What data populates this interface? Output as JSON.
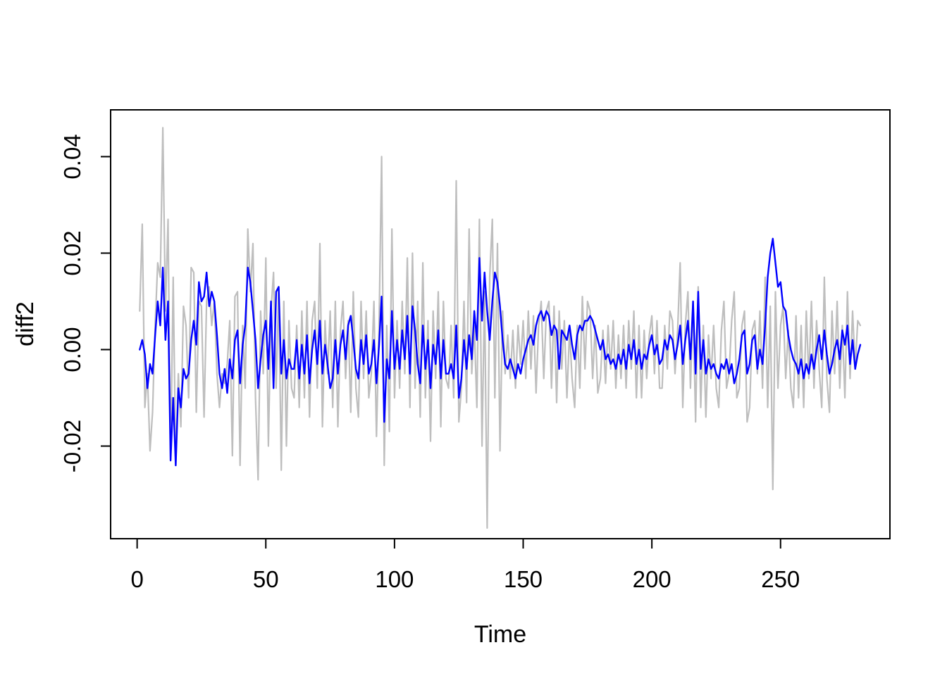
{
  "figure": {
    "kind": "r-base-time-series-plot",
    "title": "",
    "background": "#ffffff"
  },
  "colors": {
    "gray_series": "#bebebe",
    "blue_series": "#0000ff",
    "axis": "#000000",
    "background": "#ffffff"
  },
  "axes": {
    "x": {
      "label": "Time",
      "tick_labels": [
        "0",
        "50",
        "100",
        "150",
        "200",
        "250"
      ]
    },
    "y": {
      "label": "diff2",
      "tick_labels": [
        "-0.02",
        "0.00",
        "0.02",
        "0.04"
      ]
    }
  },
  "chart_data": {
    "type": "line",
    "title": "",
    "xlabel": "Time",
    "ylabel": "diff2",
    "x_start": 1,
    "n_points": 281,
    "xlim": [
      -10.3,
      292.5
    ],
    "ylim": [
      -0.0392,
      0.0497
    ],
    "x_ticks": [
      0,
      50,
      100,
      150,
      200,
      250
    ],
    "y_ticks": [
      -0.02,
      0,
      0.02,
      0.04
    ],
    "grid": false,
    "legend": "none",
    "series": [
      {
        "name": "gray-raw-diff2",
        "color": "#bebebe",
        "linewidth": 2.2,
        "values": [
          0.008,
          0.026,
          -0.012,
          -0.005,
          -0.021,
          -0.013,
          0.005,
          0.018,
          0.015,
          0.046,
          0.008,
          0.027,
          -0.023,
          0.015,
          -0.024,
          -0.005,
          -0.016,
          0.009,
          0.005,
          -0.01,
          0.017,
          0.016,
          -0.013,
          0.01,
          0.009,
          -0.014,
          0.01,
          0.013,
          0.005,
          0.01,
          -0.005,
          -0.012,
          -0.005,
          -0.007,
          -0.003,
          0.006,
          -0.022,
          0.011,
          0.012,
          -0.024,
          0.005,
          -0.008,
          0.025,
          0.012,
          0.022,
          -0.01,
          -0.027,
          0.008,
          -0.005,
          0.019,
          -0.02,
          0.008,
          0.016,
          -0.008,
          0.013,
          -0.025,
          0.01,
          -0.02,
          0.006,
          -0.008,
          -0.01,
          0.005,
          -0.012,
          0.008,
          -0.01,
          0.01,
          -0.014,
          0.006,
          0.01,
          -0.008,
          0.022,
          -0.016,
          0.006,
          -0.005,
          0.008,
          -0.012,
          0.01,
          -0.016,
          0.004,
          0.01,
          -0.006,
          0.006,
          -0.013,
          0.012,
          -0.008,
          -0.014,
          0.01,
          -0.006,
          0.008,
          -0.01,
          -0.005,
          0.01,
          -0.018,
          0.005,
          0.04,
          -0.024,
          0.005,
          -0.017,
          0.025,
          -0.01,
          0.006,
          -0.008,
          0.01,
          -0.005,
          0.019,
          -0.012,
          0.02,
          -0.008,
          0.01,
          -0.014,
          0.018,
          -0.01,
          0.006,
          -0.019,
          0.008,
          -0.006,
          0.012,
          -0.016,
          0.01,
          -0.006,
          -0.008,
          0.005,
          -0.01,
          0.035,
          -0.015,
          -0.008,
          0.01,
          -0.011,
          0.025,
          -0.005,
          0.005,
          -0.012,
          0.027,
          -0.02,
          0.012,
          -0.037,
          0.015,
          0.027,
          -0.01,
          0.022,
          -0.021,
          0.008,
          -0.005,
          0.003,
          -0.006,
          0.004,
          -0.008,
          0.005,
          -0.003,
          0.006,
          -0.006,
          0.008,
          -0.004,
          0.007,
          -0.009,
          0.005,
          0.01,
          -0.006,
          0.008,
          0.01,
          -0.008,
          0.009,
          -0.011,
          0.008,
          -0.004,
          0.006,
          -0.01,
          0.004,
          -0.006,
          -0.012,
          0.005,
          -0.008,
          0.011,
          -0.004,
          0.01,
          0.008,
          -0.006,
          0.005,
          -0.009,
          -0.006,
          0.004,
          -0.007,
          0.005,
          -0.004,
          0.006,
          -0.008,
          0.003,
          -0.006,
          0.005,
          -0.008,
          0.006,
          -0.004,
          0.008,
          -0.01,
          0.005,
          -0.01,
          0.004,
          -0.006,
          0.003,
          0.007,
          -0.005,
          0.006,
          -0.008,
          -0.008,
          0.005,
          -0.004,
          0.008,
          0.006,
          -0.005,
          0.004,
          0.018,
          -0.012,
          0.005,
          0.012,
          -0.008,
          0.01,
          -0.015,
          0.013,
          -0.012,
          0.005,
          -0.014,
          0.003,
          -0.006,
          0.005,
          -0.008,
          -0.012,
          0.004,
          0.01,
          -0.008,
          -0.005,
          0.006,
          0.012,
          -0.01,
          -0.008,
          0.005,
          0.008,
          -0.015,
          -0.012,
          0.004,
          0.006,
          -0.005,
          0.008,
          -0.008,
          0.015,
          -0.012,
          0.009,
          -0.029,
          0.012,
          -0.008,
          0.005,
          0.009,
          -0.006,
          0.004,
          -0.008,
          -0.012,
          0.007,
          -0.01,
          0.005,
          -0.012,
          0.008,
          -0.006,
          0.01,
          -0.008,
          0.006,
          -0.004,
          -0.012,
          0.015,
          -0.006,
          -0.013,
          0.008,
          -0.005,
          0.01,
          -0.008,
          0.005,
          -0.01,
          0.012,
          -0.006,
          0.008,
          -0.004,
          0.006,
          0.005
        ]
      },
      {
        "name": "blue-smoothed",
        "color": "#0000ff",
        "linewidth": 2.4,
        "values": [
          0.0,
          0.002,
          -0.001,
          -0.008,
          -0.003,
          -0.005,
          0.003,
          0.01,
          0.005,
          0.017,
          0.002,
          0.01,
          -0.023,
          -0.01,
          -0.024,
          -0.008,
          -0.012,
          -0.004,
          -0.006,
          -0.005,
          0.002,
          0.006,
          0.001,
          0.014,
          0.01,
          0.011,
          0.016,
          0.009,
          0.012,
          0.01,
          0.003,
          -0.005,
          -0.008,
          -0.004,
          -0.009,
          -0.002,
          -0.006,
          0.002,
          0.004,
          -0.007,
          0.001,
          0.005,
          0.017,
          0.014,
          0.008,
          0.002,
          -0.008,
          -0.002,
          0.003,
          0.006,
          -0.004,
          0.01,
          -0.008,
          0.012,
          0.013,
          -0.005,
          0.002,
          -0.006,
          -0.002,
          -0.004,
          -0.004,
          0.002,
          -0.006,
          0.001,
          -0.005,
          0.003,
          -0.007,
          0.0,
          0.004,
          -0.003,
          0.006,
          -0.005,
          0.001,
          -0.003,
          -0.008,
          -0.006,
          0.002,
          -0.005,
          0.001,
          0.004,
          -0.002,
          0.005,
          0.007,
          0.002,
          -0.004,
          -0.006,
          0.002,
          -0.003,
          0.003,
          -0.005,
          -0.003,
          0.002,
          -0.007,
          0.001,
          0.011,
          -0.015,
          -0.002,
          -0.006,
          0.008,
          -0.004,
          0.002,
          -0.004,
          0.004,
          -0.002,
          0.007,
          -0.005,
          0.009,
          0.004,
          -0.003,
          -0.007,
          0.005,
          -0.004,
          0.002,
          -0.008,
          0.001,
          -0.003,
          0.004,
          -0.006,
          0.002,
          -0.005,
          -0.005,
          -0.003,
          -0.006,
          0.005,
          -0.01,
          -0.006,
          0.002,
          -0.004,
          0.003,
          -0.002,
          0.008,
          0.002,
          0.019,
          0.006,
          0.016,
          0.008,
          0.002,
          0.01,
          0.016,
          0.014,
          0.009,
          0.002,
          -0.003,
          -0.004,
          -0.002,
          -0.004,
          -0.006,
          -0.003,
          -0.005,
          -0.002,
          0.0,
          0.002,
          0.003,
          0.001,
          0.005,
          0.007,
          0.008,
          0.006,
          0.008,
          0.007,
          0.003,
          0.005,
          0.004,
          -0.004,
          0.004,
          0.003,
          0.002,
          0.005,
          0.001,
          -0.002,
          0.003,
          0.005,
          0.004,
          0.006,
          0.006,
          0.007,
          0.006,
          0.004,
          0.002,
          0.0,
          0.002,
          -0.002,
          -0.001,
          -0.003,
          -0.002,
          -0.004,
          -0.001,
          -0.003,
          0.0,
          -0.004,
          0.001,
          -0.002,
          0.002,
          -0.003,
          0.0,
          -0.004,
          -0.001,
          -0.002,
          0.001,
          0.003,
          -0.001,
          0.001,
          -0.003,
          -0.002,
          0.002,
          0.0,
          0.003,
          0.002,
          -0.002,
          0.001,
          0.005,
          -0.003,
          0.002,
          0.006,
          -0.002,
          0.01,
          -0.005,
          0.012,
          -0.004,
          0.002,
          -0.005,
          -0.002,
          -0.004,
          -0.003,
          -0.005,
          -0.006,
          -0.003,
          -0.004,
          -0.002,
          -0.005,
          -0.003,
          -0.007,
          -0.005,
          -0.002,
          0.003,
          0.004,
          -0.005,
          -0.003,
          0.002,
          0.003,
          -0.004,
          0.0,
          -0.003,
          0.005,
          0.015,
          0.02,
          0.023,
          0.018,
          0.013,
          0.014,
          0.009,
          0.008,
          0.003,
          0.0,
          -0.002,
          -0.003,
          -0.005,
          -0.002,
          -0.006,
          -0.003,
          -0.005,
          -0.001,
          -0.004,
          0.0,
          0.003,
          -0.002,
          0.004,
          -0.001,
          -0.005,
          -0.003,
          0.0,
          0.002,
          -0.002,
          0.004,
          0.001,
          0.005,
          -0.003,
          0.002,
          -0.004,
          -0.001,
          0.001
        ]
      }
    ]
  }
}
